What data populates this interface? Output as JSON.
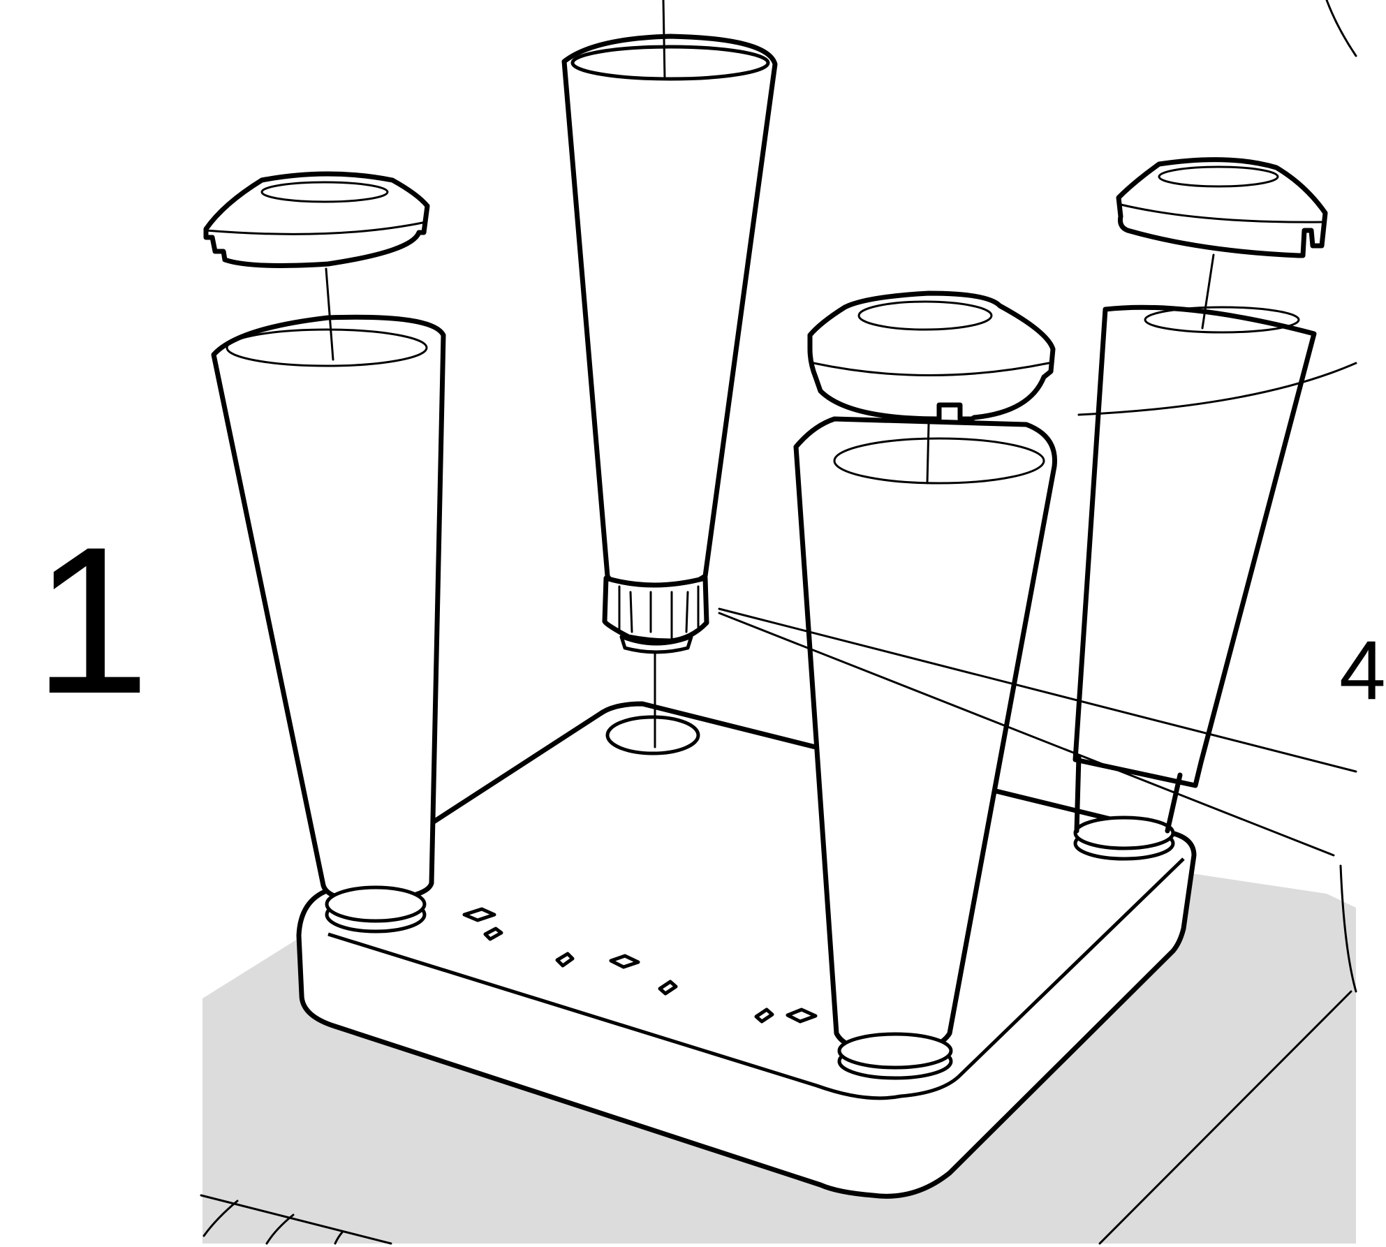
{
  "step": {
    "number": "1",
    "next_number_partial": "4"
  },
  "colors": {
    "floor": "#dcdcdc",
    "line": "#000000",
    "background": "#ffffff"
  },
  "parts": [
    {
      "id": "leg",
      "count": 4,
      "shape": "tapered-cone"
    },
    {
      "id": "cap",
      "count": 3,
      "shape": "domed-cap"
    },
    {
      "id": "adjustable-foot",
      "count": 1
    },
    {
      "id": "base-tray",
      "count": 1
    }
  ],
  "icons": [
    "cap-icon",
    "leg-icon",
    "foot-icon",
    "tray-icon",
    "detail-callout-icon"
  ]
}
